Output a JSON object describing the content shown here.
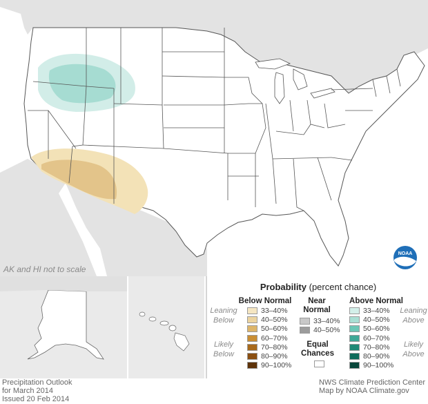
{
  "map": {
    "scale_note": "AK and HI not to scale",
    "colors": {
      "land": "#ffffff",
      "neighbor_land": "#e3e3e3",
      "water": "#ffffff",
      "border": "#555555",
      "below_33_40": "#f3e2b7",
      "below_40_50": "#e3c48a",
      "above_33_40": "#d2ede8",
      "above_40_50": "#a6dcd2"
    }
  },
  "legend": {
    "title_bold": "Probability",
    "title_rest": " (percent chance)",
    "below_header": "Below Normal",
    "near_header_1": "Near",
    "near_header_2": "Normal",
    "above_header": "Above Normal",
    "leaning_1": "Leaning",
    "below_word": "Below",
    "above_word": "Above",
    "likely": "Likely",
    "equal_1": "Equal",
    "equal_2": "Chances",
    "below_rows": [
      {
        "label": "33–40%",
        "color": "#f5e6c2"
      },
      {
        "label": "40–50%",
        "color": "#ecd4a0"
      },
      {
        "label": "50–60%",
        "color": "#ddb56a"
      },
      {
        "label": "60–70%",
        "color": "#c98e34"
      },
      {
        "label": "70–80%",
        "color": "#a86a1c"
      },
      {
        "label": "80–90%",
        "color": "#8a4f12"
      },
      {
        "label": "90–100%",
        "color": "#5e330a"
      }
    ],
    "near_rows": [
      {
        "label": "33–40%",
        "color": "#c8c8c8"
      },
      {
        "label": "40–50%",
        "color": "#9c9c9c"
      }
    ],
    "equal_color": "#ffffff",
    "above_rows": [
      {
        "label": "33–40%",
        "color": "#d3efe9"
      },
      {
        "label": "40–50%",
        "color": "#a9dfd4"
      },
      {
        "label": "50–60%",
        "color": "#6cc7b6"
      },
      {
        "label": "60–70%",
        "color": "#3ea896"
      },
      {
        "label": "70–80%",
        "color": "#1f8a76"
      },
      {
        "label": "80–90%",
        "color": "#0f6b5a"
      },
      {
        "label": "90–100%",
        "color": "#08473b"
      }
    ]
  },
  "footer": {
    "left_1": "Precipitation Outlook",
    "left_2": "for March 2014",
    "left_3": "Issued 20 Feb 2014",
    "right_1": "NWS Climate Prediction Center",
    "right_2": "Map by NOAA Climate.gov"
  }
}
